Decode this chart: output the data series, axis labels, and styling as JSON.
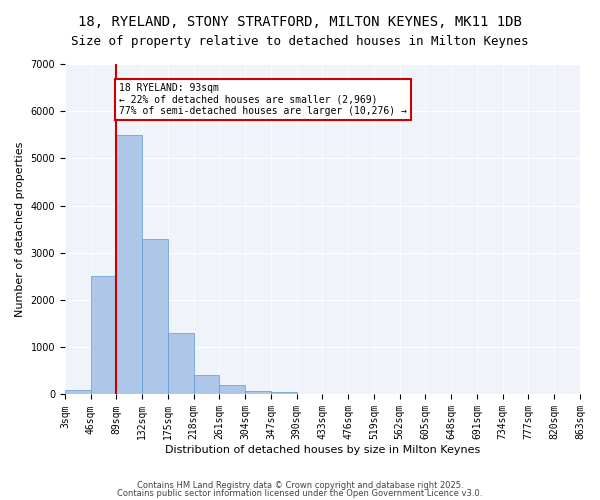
{
  "title_line1": "18, RYELAND, STONY STRATFORD, MILTON KEYNES, MK11 1DB",
  "title_line2": "Size of property relative to detached houses in Milton Keynes",
  "xlabel": "Distribution of detached houses by size in Milton Keynes",
  "ylabel": "Number of detached properties",
  "bar_values": [
    100,
    2500,
    5500,
    3300,
    1300,
    420,
    200,
    80,
    50,
    0,
    0,
    0,
    0,
    0,
    0,
    0,
    0,
    0,
    0,
    0
  ],
  "bar_labels": [
    "3sqm",
    "46sqm",
    "89sqm",
    "132sqm",
    "175sqm",
    "218sqm",
    "261sqm",
    "304sqm",
    "347sqm",
    "390sqm",
    "433sqm",
    "476sqm",
    "519sqm",
    "562sqm",
    "605sqm",
    "648sqm",
    "691sqm",
    "734sqm",
    "777sqm",
    "820sqm",
    "863sqm"
  ],
  "bar_color": "#aec6e8",
  "bar_edge_color": "#5b9bd5",
  "vline_x": 1,
  "vline_color": "#cc0000",
  "annotation_text": "18 RYELAND: 93sqm\n← 22% of detached houses are smaller (2,969)\n77% of semi-detached houses are larger (10,276) →",
  "annotation_box_color": "#cc0000",
  "ylim": [
    0,
    7000
  ],
  "yticks": [
    0,
    1000,
    2000,
    3000,
    4000,
    5000,
    6000,
    7000
  ],
  "bg_color": "#f0f4fa",
  "footer_line1": "Contains HM Land Registry data © Crown copyright and database right 2025.",
  "footer_line2": "Contains public sector information licensed under the Open Government Licence v3.0.",
  "title_fontsize": 10,
  "subtitle_fontsize": 9,
  "axis_label_fontsize": 8,
  "tick_fontsize": 7
}
